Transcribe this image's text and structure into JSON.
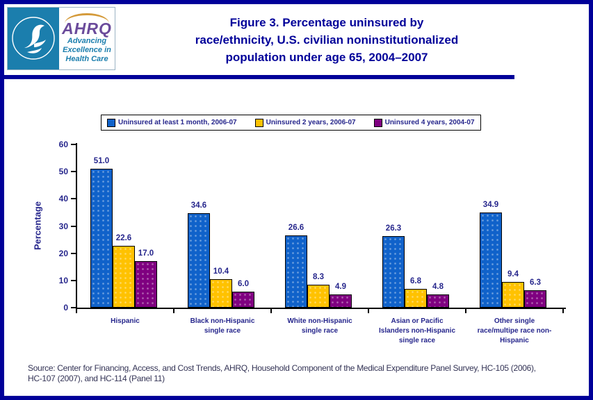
{
  "header": {
    "title_lines": [
      "Figure 3. Percentage uninsured by",
      "race/ethnicity, U.S. civilian noninstitutionalized",
      "population under age 65, 2004–2007"
    ],
    "logo": {
      "agency_abbr": "AHRQ",
      "tagline_lines": [
        "Advancing",
        "Excellence in",
        "Health Care"
      ]
    }
  },
  "palette": {
    "accent_navy": "#000099",
    "chart_text": "#26268c",
    "logo_teal": "#1b7ead",
    "logo_purple": "#6b4b9b"
  },
  "chart_data": {
    "type": "bar",
    "title": "Figure 3. Percentage uninsured by race/ethnicity, U.S. civilian noninstitutionalized population under age 65, 2004–2007",
    "ylabel": "Percentage",
    "xlabel": "",
    "ylim": [
      0,
      60
    ],
    "yticks": [
      0,
      10,
      20,
      30,
      40,
      50,
      60
    ],
    "grid": false,
    "legend_position": "top",
    "categories": [
      "Hispanic",
      "Black non-Hispanic single race",
      "White non-Hispanic single race",
      "Asian or Pacific Islanders non-Hispanic single race",
      "Other single race/multipe race non-Hispanic"
    ],
    "category_lines": [
      [
        "Hispanic"
      ],
      [
        "Black non-Hispanic",
        "single race"
      ],
      [
        "White non-Hispanic",
        "single race"
      ],
      [
        "Asian or Pacific",
        "Islanders non-Hispanic",
        "single race"
      ],
      [
        "Other single",
        "race/multipe race non-",
        "Hispanic"
      ]
    ],
    "series": [
      {
        "name": "Uninsured at least 1 month, 2006-07",
        "color": "#1062ca",
        "values": [
          51.0,
          34.6,
          26.6,
          26.3,
          34.9
        ]
      },
      {
        "name": "Uninsured 2 years, 2006-07",
        "color": "#ffc200",
        "values": [
          22.6,
          10.4,
          8.3,
          6.8,
          9.4
        ]
      },
      {
        "name": "Uninsured 4 years, 2004-07",
        "color": "#7f0080",
        "values": [
          17.0,
          6.0,
          4.9,
          4.8,
          6.3
        ]
      }
    ]
  },
  "source_lines": [
    "Source: Center for Financing, Access, and Cost Trends, AHRQ, Household Component of the Medical Expenditure Panel Survey, HC-105 (2006),",
    "HC-107 (2007), and HC-114 (Panel 11)"
  ]
}
